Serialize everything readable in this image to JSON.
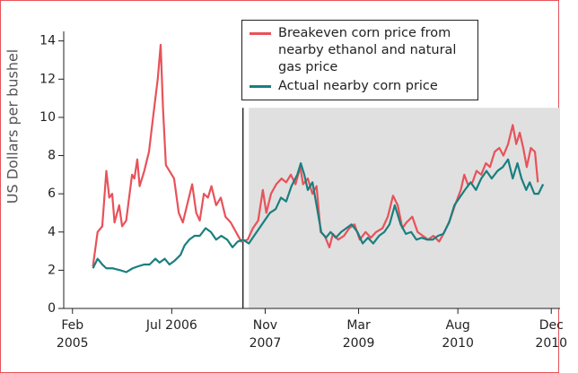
{
  "chart_data": {
    "type": "line",
    "ylabel": "US Dollars per bushel",
    "xlim": [
      -1.5,
      83.5
    ],
    "ylim": [
      0,
      14.5
    ],
    "yticks": [
      0,
      2,
      4,
      6,
      8,
      10,
      12,
      14
    ],
    "xticks": [
      {
        "value": 0,
        "label": "Feb 2005"
      },
      {
        "value": 17,
        "label": "Jul 2006"
      },
      {
        "value": 33,
        "label": "Nov 2007"
      },
      {
        "value": 49,
        "label": "Mar 2009"
      },
      {
        "value": 66,
        "label": "Aug 2010"
      },
      {
        "value": 82,
        "label": "Dec 2010"
      }
    ],
    "shade": {
      "x0": 30.2,
      "top": 10.5,
      "color": "#e0e0e0"
    },
    "vline_x": 29.2,
    "legend": "upper right",
    "series": [
      {
        "name": "Breakeven corn price from nearby ethanol and natural gas price",
        "color": "#e8525a",
        "x": [
          3.5,
          4.3,
          5.1,
          5.8,
          6.3,
          6.8,
          7.2,
          8,
          8.5,
          9.2,
          10.2,
          10.6,
          11.1,
          11.5,
          12.3,
          13.1,
          13.8,
          14.6,
          15.1,
          15.5,
          16,
          16.6,
          17.4,
          18.2,
          18.9,
          19.7,
          20.5,
          21.2,
          21.8,
          22.5,
          23.2,
          23.8,
          24.6,
          25.4,
          26.2,
          27.1,
          28,
          28.9,
          30,
          30.9,
          31.8,
          32.6,
          33.2,
          34,
          34.9,
          35.8,
          36.6,
          37.4,
          38.2,
          39,
          39.5,
          40.3,
          41.1,
          41.8,
          42.5,
          43.2,
          44,
          44.6,
          45.5,
          46.5,
          47.4,
          48.3,
          49.2,
          50.2,
          51.1,
          52,
          53.1,
          54,
          54.9,
          55.7,
          56.5,
          57.2,
          58.2,
          59.1,
          60,
          60.9,
          61.8,
          62.8,
          63.7,
          64.6,
          65.5,
          66.5,
          67.1,
          67.7,
          68.5,
          69.2,
          70,
          70.8,
          71.5,
          72.3,
          73.1,
          73.8,
          74.6,
          75.4,
          76,
          76.6,
          77.2,
          77.8,
          78.5,
          79.2,
          79.7
        ],
        "values": [
          2.2,
          4.0,
          4.3,
          7.2,
          5.8,
          6.0,
          4.5,
          5.4,
          4.3,
          4.6,
          7.0,
          6.8,
          7.8,
          6.4,
          7.2,
          8.2,
          10.0,
          12.0,
          13.8,
          10.5,
          7.5,
          7.2,
          6.8,
          5.0,
          4.5,
          5.5,
          6.5,
          5.0,
          4.6,
          6.0,
          5.8,
          6.4,
          5.4,
          5.8,
          4.8,
          4.5,
          4.0,
          3.5,
          3.6,
          4.2,
          4.6,
          6.2,
          5.0,
          6.0,
          6.5,
          6.8,
          6.6,
          7.0,
          6.5,
          7.4,
          6.5,
          6.8,
          6.0,
          6.4,
          4.0,
          3.8,
          3.2,
          3.9,
          3.6,
          3.8,
          4.2,
          4.4,
          3.6,
          4.0,
          3.7,
          4.0,
          4.2,
          4.8,
          5.9,
          5.4,
          4.2,
          4.5,
          4.8,
          4.0,
          3.8,
          3.6,
          3.8,
          3.5,
          4.0,
          4.6,
          5.4,
          6.2,
          7.0,
          6.5,
          6.6,
          7.2,
          7.0,
          7.6,
          7.4,
          8.2,
          8.4,
          8.0,
          8.6,
          9.6,
          8.6,
          9.2,
          8.4,
          7.4,
          8.4,
          8.2,
          6.6
        ]
      },
      {
        "name": "Actual nearby corn price",
        "color": "#1a7f7f",
        "x": [
          3.5,
          4.3,
          5.1,
          5.8,
          6.9,
          8.2,
          9.2,
          10.3,
          11.2,
          12.3,
          13.2,
          14.2,
          14.9,
          15.8,
          16.6,
          17.5,
          18.5,
          19.2,
          20,
          20.9,
          21.8,
          22.8,
          23.7,
          24.6,
          25.5,
          26.5,
          27.4,
          28.3,
          29.2,
          30.2,
          31.1,
          32,
          32.9,
          33.8,
          34.8,
          35.7,
          36.6,
          37.5,
          38.5,
          39.1,
          39.7,
          40.3,
          41.1,
          41.8,
          42.6,
          43.4,
          44.2,
          45.1,
          46,
          46.9,
          47.8,
          48.8,
          49.7,
          50.6,
          51.5,
          52.5,
          53.4,
          54.3,
          55.2,
          56.2,
          57.1,
          58,
          58.9,
          59.8,
          60.8,
          61.7,
          62.6,
          63.5,
          64.5,
          65.4,
          66.3,
          67.2,
          68.2,
          69.1,
          70,
          70.9,
          71.8,
          72.8,
          73.7,
          74.6,
          75.4,
          76.2,
          76.9,
          77.7,
          78.3,
          79.1,
          79.8,
          80.6
        ],
        "values": [
          2.1,
          2.6,
          2.3,
          2.1,
          2.1,
          2.0,
          1.9,
          2.1,
          2.2,
          2.3,
          2.3,
          2.6,
          2.4,
          2.6,
          2.3,
          2.5,
          2.8,
          3.3,
          3.6,
          3.8,
          3.8,
          4.2,
          4.0,
          3.6,
          3.8,
          3.6,
          3.2,
          3.5,
          3.6,
          3.4,
          3.8,
          4.2,
          4.6,
          5.0,
          5.2,
          5.8,
          5.6,
          6.4,
          7.0,
          7.6,
          7.0,
          6.2,
          6.6,
          5.4,
          4.0,
          3.7,
          4.0,
          3.7,
          4.0,
          4.2,
          4.4,
          4.0,
          3.4,
          3.7,
          3.4,
          3.8,
          4.0,
          4.4,
          5.4,
          4.4,
          3.9,
          4.0,
          3.6,
          3.7,
          3.6,
          3.6,
          3.8,
          3.9,
          4.5,
          5.4,
          5.8,
          6.2,
          6.6,
          6.2,
          6.8,
          7.2,
          6.8,
          7.2,
          7.4,
          7.8,
          6.8,
          7.6,
          6.8,
          6.2,
          6.6,
          6.0,
          6.0,
          6.5
        ]
      }
    ]
  }
}
